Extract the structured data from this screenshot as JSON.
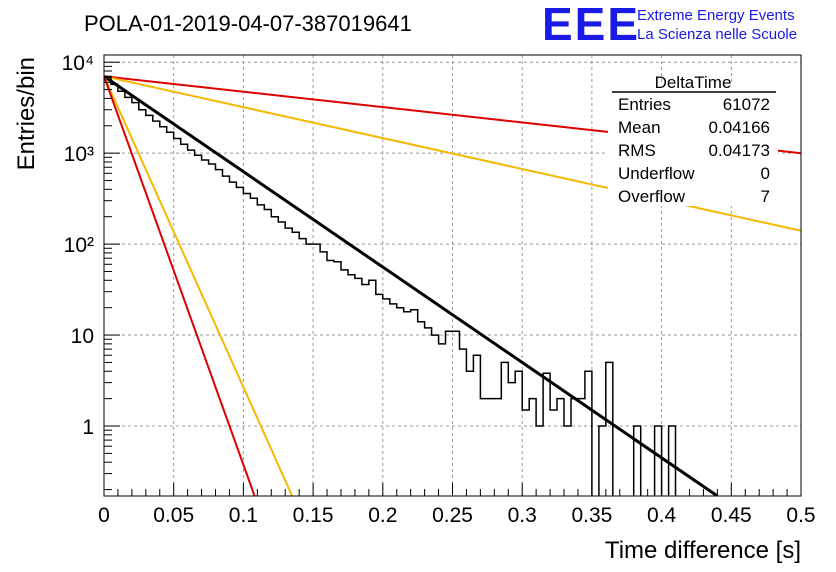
{
  "page_title": "POLA-01-2019-04-07-387019641",
  "logo": {
    "mark": "EEE",
    "line1": "Extreme Energy Events",
    "line2": "La Scienza nelle Scuole",
    "color": "#1a1ae6"
  },
  "stats_box": {
    "title": "DeltaTime",
    "rows": [
      {
        "label": "Entries",
        "value": "61072"
      },
      {
        "label": "Mean",
        "value": "0.04166"
      },
      {
        "label": "RMS",
        "value": "0.04173"
      },
      {
        "label": "Underflow",
        "value": "0"
      },
      {
        "label": "Overflow",
        "value": "7"
      }
    ]
  },
  "chart_data": {
    "type": "line",
    "xlabel": "Time difference [s]",
    "ylabel": "Entries/bin",
    "xlim": [
      0,
      0.5
    ],
    "ylim": [
      0.17,
      12000
    ],
    "y_scale": "log",
    "grid": true,
    "x_ticks": [
      0,
      0.05,
      0.1,
      0.15,
      0.2,
      0.25,
      0.3,
      0.35,
      0.4,
      0.45,
      0.5
    ],
    "x_tick_labels": [
      "0",
      "0.05",
      "0.1",
      "0.15",
      "0.2",
      "0.25",
      "0.3",
      "0.35",
      "0.4",
      "0.45",
      "0.5"
    ],
    "y_ticks": [
      1,
      10,
      100,
      1000,
      10000
    ],
    "y_tick_labels": [
      "1",
      "10",
      "10²",
      "10³",
      "10⁴"
    ],
    "histogram": {
      "color": "#000000",
      "bin_width": 0.005,
      "values": [
        6800,
        5700,
        4800,
        4100,
        3600,
        3000,
        2600,
        2250,
        1950,
        1700,
        1450,
        1250,
        1080,
        950,
        840,
        760,
        660,
        560,
        480,
        420,
        360,
        320,
        270,
        240,
        200,
        175,
        150,
        135,
        115,
        100,
        100,
        82,
        66,
        64,
        52,
        46,
        42,
        36,
        40,
        28,
        25,
        22,
        20,
        18,
        19,
        14,
        12,
        10,
        8,
        11,
        11,
        7,
        4,
        6,
        2,
        2,
        2,
        5,
        3,
        4,
        1.5,
        2,
        1,
        3.8,
        1.5,
        2,
        1,
        2,
        2,
        4,
        0.1,
        1,
        5,
        0.1,
        0.1,
        0.1,
        1,
        0.1,
        0.1,
        1,
        0.1,
        1,
        0.1,
        0.1,
        0.1,
        0.1,
        0.1,
        0.1,
        0.1,
        0.1,
        0.1,
        0.1,
        0.1,
        0.1,
        0.1,
        0.1,
        0.1,
        0.1,
        0.1,
        0.1
      ]
    },
    "series": [
      {
        "color": "#000000",
        "x": [
          0,
          0.44
        ],
        "y": [
          7000,
          0.17
        ]
      },
      {
        "color": "#dd0000",
        "x": [
          0,
          0.5
        ],
        "y": [
          7000,
          1000
        ]
      },
      {
        "color": "#f5b800",
        "x": [
          0,
          0.5
        ],
        "y": [
          7000,
          140
        ]
      },
      {
        "color": "#f5b800",
        "x": [
          0,
          0.135
        ],
        "y": [
          7000,
          0.17
        ]
      },
      {
        "color": "#dd0000",
        "x": [
          0,
          0.108
        ],
        "y": [
          7000,
          0.17
        ]
      }
    ]
  }
}
